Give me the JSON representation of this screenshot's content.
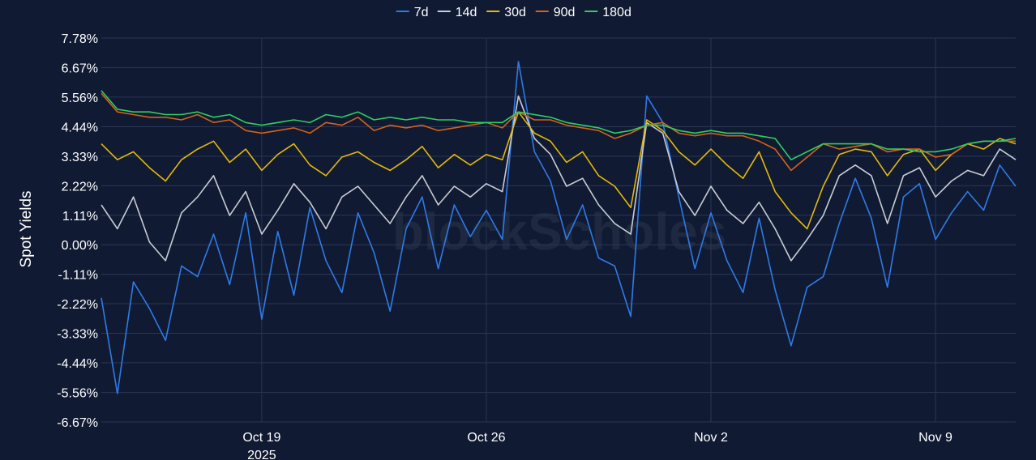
{
  "chart_data": {
    "type": "line",
    "ylabel": "Spot Yields",
    "watermark": "blockScholes",
    "x_ticks": [
      {
        "label": "Oct 19",
        "sublabel": "2025",
        "date": "2025-10-19"
      },
      {
        "label": "Oct 26",
        "sublabel": "",
        "date": "2025-10-26"
      },
      {
        "label": "Nov 2",
        "sublabel": "",
        "date": "2025-11-02"
      },
      {
        "label": "Nov 9",
        "sublabel": "",
        "date": "2025-11-09"
      }
    ],
    "xlim": [
      "2025-10-14",
      "2025-11-11T12:00"
    ],
    "ylim": [
      -6.67,
      7.78
    ],
    "y_ticks": [
      {
        "label": "7.78%",
        "value": 7.78
      },
      {
        "label": "6.67%",
        "value": 6.67
      },
      {
        "label": "5.56%",
        "value": 5.56
      },
      {
        "label": "4.44%",
        "value": 4.44
      },
      {
        "label": "3.33%",
        "value": 3.33
      },
      {
        "label": "2.22%",
        "value": 2.22
      },
      {
        "label": "1.11%",
        "value": 1.11
      },
      {
        "label": "0.00%",
        "value": 0.0
      },
      {
        "label": "-1.11%",
        "value": -1.11
      },
      {
        "label": "-2.22%",
        "value": -2.22
      },
      {
        "label": "-3.33%",
        "value": -3.33
      },
      {
        "label": "-4.44%",
        "value": -4.44
      },
      {
        "label": "-5.56%",
        "value": -5.56
      },
      {
        "label": "-6.67%",
        "value": -6.67
      }
    ],
    "grid": true,
    "legend_position": "top",
    "series": [
      {
        "name": "7d",
        "color": "#2f7be6",
        "x": [
          "2025-10-14",
          "2025-10-14T12:00",
          "2025-10-15",
          "2025-10-15T12:00",
          "2025-10-16",
          "2025-10-16T12:00",
          "2025-10-17",
          "2025-10-17T12:00",
          "2025-10-18",
          "2025-10-18T12:00",
          "2025-10-19",
          "2025-10-19T12:00",
          "2025-10-20",
          "2025-10-20T12:00",
          "2025-10-21",
          "2025-10-21T12:00",
          "2025-10-22",
          "2025-10-22T12:00",
          "2025-10-23",
          "2025-10-23T12:00",
          "2025-10-24",
          "2025-10-24T12:00",
          "2025-10-25",
          "2025-10-25T12:00",
          "2025-10-26",
          "2025-10-26T12:00",
          "2025-10-27",
          "2025-10-27T12:00",
          "2025-10-28",
          "2025-10-28T12:00",
          "2025-10-29",
          "2025-10-29T12:00",
          "2025-10-30",
          "2025-10-30T12:00",
          "2025-10-31",
          "2025-10-31T12:00",
          "2025-11-01",
          "2025-11-01T12:00",
          "2025-11-02",
          "2025-11-02T12:00",
          "2025-11-03",
          "2025-11-03T12:00",
          "2025-11-04",
          "2025-11-04T12:00",
          "2025-11-05",
          "2025-11-05T12:00",
          "2025-11-06",
          "2025-11-06T12:00",
          "2025-11-07",
          "2025-11-07T12:00",
          "2025-11-08",
          "2025-11-08T12:00",
          "2025-11-09",
          "2025-11-09T12:00",
          "2025-11-10",
          "2025-11-10T12:00",
          "2025-11-11",
          "2025-11-11T12:00"
        ],
        "values": [
          -2.0,
          -5.6,
          -1.4,
          -2.4,
          -3.6,
          -0.8,
          -1.2,
          0.4,
          -1.5,
          1.2,
          -2.8,
          0.5,
          -1.9,
          1.4,
          -0.6,
          -1.8,
          1.2,
          -0.3,
          -2.5,
          0.6,
          1.8,
          -0.9,
          1.5,
          0.3,
          1.3,
          0.2,
          6.9,
          3.5,
          2.4,
          0.2,
          1.5,
          -0.5,
          -0.8,
          -2.7,
          5.6,
          4.6,
          1.8,
          -0.9,
          1.2,
          -0.6,
          -1.8,
          1.0,
          -1.7,
          -3.8,
          -1.6,
          -1.2,
          0.8,
          2.5,
          1.0,
          -1.6,
          1.8,
          2.3,
          0.2,
          1.2,
          2.0,
          1.3,
          3.0,
          2.2
        ]
      },
      {
        "name": "14d",
        "color": "#c9ccd4",
        "x": [
          "2025-10-14",
          "2025-10-14T12:00",
          "2025-10-15",
          "2025-10-15T12:00",
          "2025-10-16",
          "2025-10-16T12:00",
          "2025-10-17",
          "2025-10-17T12:00",
          "2025-10-18",
          "2025-10-18T12:00",
          "2025-10-19",
          "2025-10-19T12:00",
          "2025-10-20",
          "2025-10-20T12:00",
          "2025-10-21",
          "2025-10-21T12:00",
          "2025-10-22",
          "2025-10-22T12:00",
          "2025-10-23",
          "2025-10-23T12:00",
          "2025-10-24",
          "2025-10-24T12:00",
          "2025-10-25",
          "2025-10-25T12:00",
          "2025-10-26",
          "2025-10-26T12:00",
          "2025-10-27",
          "2025-10-27T12:00",
          "2025-10-28",
          "2025-10-28T12:00",
          "2025-10-29",
          "2025-10-29T12:00",
          "2025-10-30",
          "2025-10-30T12:00",
          "2025-10-31",
          "2025-10-31T12:00",
          "2025-11-01",
          "2025-11-01T12:00",
          "2025-11-02",
          "2025-11-02T12:00",
          "2025-11-03",
          "2025-11-03T12:00",
          "2025-11-04",
          "2025-11-04T12:00",
          "2025-11-05",
          "2025-11-05T12:00",
          "2025-11-06",
          "2025-11-06T12:00",
          "2025-11-07",
          "2025-11-07T12:00",
          "2025-11-08",
          "2025-11-08T12:00",
          "2025-11-09",
          "2025-11-09T12:00",
          "2025-11-10",
          "2025-11-10T12:00",
          "2025-11-11",
          "2025-11-11T12:00"
        ],
        "values": [
          1.5,
          0.6,
          1.8,
          0.1,
          -0.6,
          1.2,
          1.8,
          2.6,
          1.1,
          2.0,
          0.4,
          1.3,
          2.3,
          1.6,
          0.6,
          1.8,
          2.2,
          1.5,
          0.8,
          1.8,
          2.6,
          1.5,
          2.2,
          1.8,
          2.3,
          2.0,
          5.6,
          4.0,
          3.4,
          2.2,
          2.5,
          1.5,
          0.8,
          0.4,
          4.6,
          4.2,
          2.0,
          1.1,
          2.2,
          1.3,
          0.8,
          1.6,
          0.6,
          -0.6,
          0.2,
          1.1,
          2.6,
          3.0,
          2.6,
          0.8,
          2.6,
          2.9,
          1.8,
          2.4,
          2.8,
          2.6,
          3.6,
          3.2
        ]
      },
      {
        "name": "30d",
        "color": "#e5b80b",
        "x": [
          "2025-10-14",
          "2025-10-14T12:00",
          "2025-10-15",
          "2025-10-15T12:00",
          "2025-10-16",
          "2025-10-16T12:00",
          "2025-10-17",
          "2025-10-17T12:00",
          "2025-10-18",
          "2025-10-18T12:00",
          "2025-10-19",
          "2025-10-19T12:00",
          "2025-10-20",
          "2025-10-20T12:00",
          "2025-10-21",
          "2025-10-21T12:00",
          "2025-10-22",
          "2025-10-22T12:00",
          "2025-10-23",
          "2025-10-23T12:00",
          "2025-10-24",
          "2025-10-24T12:00",
          "2025-10-25",
          "2025-10-25T12:00",
          "2025-10-26",
          "2025-10-26T12:00",
          "2025-10-27",
          "2025-10-27T12:00",
          "2025-10-28",
          "2025-10-28T12:00",
          "2025-10-29",
          "2025-10-29T12:00",
          "2025-10-30",
          "2025-10-30T12:00",
          "2025-10-31",
          "2025-10-31T12:00",
          "2025-11-01",
          "2025-11-01T12:00",
          "2025-11-02",
          "2025-11-02T12:00",
          "2025-11-03",
          "2025-11-03T12:00",
          "2025-11-04",
          "2025-11-04T12:00",
          "2025-11-05",
          "2025-11-05T12:00",
          "2025-11-06",
          "2025-11-06T12:00",
          "2025-11-07",
          "2025-11-07T12:00",
          "2025-11-08",
          "2025-11-08T12:00",
          "2025-11-09",
          "2025-11-09T12:00",
          "2025-11-10",
          "2025-11-10T12:00",
          "2025-11-11",
          "2025-11-11T12:00"
        ],
        "values": [
          3.8,
          3.2,
          3.5,
          2.9,
          2.4,
          3.2,
          3.6,
          3.9,
          3.1,
          3.6,
          2.8,
          3.4,
          3.8,
          3.0,
          2.6,
          3.3,
          3.5,
          3.1,
          2.8,
          3.2,
          3.7,
          2.9,
          3.4,
          3.0,
          3.4,
          3.2,
          5.0,
          4.2,
          3.9,
          3.1,
          3.5,
          2.6,
          2.2,
          1.4,
          4.7,
          4.3,
          3.5,
          3.0,
          3.6,
          3.0,
          2.5,
          3.5,
          2.0,
          1.2,
          0.6,
          2.2,
          3.4,
          3.6,
          3.5,
          2.6,
          3.4,
          3.6,
          2.8,
          3.4,
          3.8,
          3.6,
          4.0,
          3.8
        ]
      },
      {
        "name": "90d",
        "color": "#d4621a",
        "x": [
          "2025-10-14",
          "2025-10-14T12:00",
          "2025-10-15",
          "2025-10-15T12:00",
          "2025-10-16",
          "2025-10-16T12:00",
          "2025-10-17",
          "2025-10-17T12:00",
          "2025-10-18",
          "2025-10-18T12:00",
          "2025-10-19",
          "2025-10-19T12:00",
          "2025-10-20",
          "2025-10-20T12:00",
          "2025-10-21",
          "2025-10-21T12:00",
          "2025-10-22",
          "2025-10-22T12:00",
          "2025-10-23",
          "2025-10-23T12:00",
          "2025-10-24",
          "2025-10-24T12:00",
          "2025-10-25",
          "2025-10-25T12:00",
          "2025-10-26",
          "2025-10-26T12:00",
          "2025-10-27",
          "2025-10-27T12:00",
          "2025-10-28",
          "2025-10-28T12:00",
          "2025-10-29",
          "2025-10-29T12:00",
          "2025-10-30",
          "2025-10-30T12:00",
          "2025-10-31",
          "2025-10-31T12:00",
          "2025-11-01",
          "2025-11-01T12:00",
          "2025-11-02",
          "2025-11-02T12:00",
          "2025-11-03",
          "2025-11-03T12:00",
          "2025-11-04",
          "2025-11-04T12:00",
          "2025-11-05",
          "2025-11-05T12:00",
          "2025-11-06",
          "2025-11-06T12:00",
          "2025-11-07",
          "2025-11-07T12:00",
          "2025-11-08",
          "2025-11-08T12:00",
          "2025-11-09",
          "2025-11-09T12:00",
          "2025-11-10",
          "2025-11-10T12:00",
          "2025-11-11",
          "2025-11-11T12:00"
        ],
        "values": [
          5.7,
          5.0,
          4.9,
          4.8,
          4.8,
          4.7,
          4.9,
          4.6,
          4.7,
          4.3,
          4.2,
          4.3,
          4.4,
          4.2,
          4.6,
          4.5,
          4.8,
          4.3,
          4.5,
          4.4,
          4.5,
          4.3,
          4.4,
          4.5,
          4.6,
          4.4,
          5.0,
          4.7,
          4.7,
          4.5,
          4.4,
          4.3,
          4.0,
          4.2,
          4.5,
          4.6,
          4.2,
          4.1,
          4.2,
          4.1,
          4.1,
          3.9,
          3.6,
          2.8,
          3.3,
          3.8,
          3.6,
          3.7,
          3.8,
          3.5,
          3.6,
          3.6,
          3.3,
          3.4,
          3.8,
          3.9,
          3.9,
          3.9
        ]
      },
      {
        "name": "180d",
        "color": "#2fcf5f",
        "x": [
          "2025-10-14",
          "2025-10-14T12:00",
          "2025-10-15",
          "2025-10-15T12:00",
          "2025-10-16",
          "2025-10-16T12:00",
          "2025-10-17",
          "2025-10-17T12:00",
          "2025-10-18",
          "2025-10-18T12:00",
          "2025-10-19",
          "2025-10-19T12:00",
          "2025-10-20",
          "2025-10-20T12:00",
          "2025-10-21",
          "2025-10-21T12:00",
          "2025-10-22",
          "2025-10-22T12:00",
          "2025-10-23",
          "2025-10-23T12:00",
          "2025-10-24",
          "2025-10-24T12:00",
          "2025-10-25",
          "2025-10-25T12:00",
          "2025-10-26",
          "2025-10-26T12:00",
          "2025-10-27",
          "2025-10-27T12:00",
          "2025-10-28",
          "2025-10-28T12:00",
          "2025-10-29",
          "2025-10-29T12:00",
          "2025-10-30",
          "2025-10-30T12:00",
          "2025-10-31",
          "2025-10-31T12:00",
          "2025-11-01",
          "2025-11-01T12:00",
          "2025-11-02",
          "2025-11-02T12:00",
          "2025-11-03",
          "2025-11-03T12:00",
          "2025-11-04",
          "2025-11-04T12:00",
          "2025-11-05",
          "2025-11-05T12:00",
          "2025-11-06",
          "2025-11-06T12:00",
          "2025-11-07",
          "2025-11-07T12:00",
          "2025-11-08",
          "2025-11-08T12:00",
          "2025-11-09",
          "2025-11-09T12:00",
          "2025-11-10",
          "2025-11-10T12:00",
          "2025-11-11",
          "2025-11-11T12:00"
        ],
        "values": [
          5.8,
          5.1,
          5.0,
          5.0,
          4.9,
          4.9,
          5.0,
          4.8,
          4.9,
          4.6,
          4.5,
          4.6,
          4.7,
          4.6,
          4.9,
          4.8,
          5.0,
          4.7,
          4.8,
          4.7,
          4.8,
          4.7,
          4.7,
          4.6,
          4.6,
          4.6,
          5.0,
          4.9,
          4.8,
          4.6,
          4.5,
          4.4,
          4.2,
          4.3,
          4.5,
          4.5,
          4.3,
          4.2,
          4.3,
          4.2,
          4.2,
          4.1,
          4.0,
          3.2,
          3.5,
          3.8,
          3.8,
          3.8,
          3.8,
          3.6,
          3.6,
          3.5,
          3.5,
          3.6,
          3.8,
          3.9,
          3.9,
          4.0
        ]
      }
    ]
  }
}
